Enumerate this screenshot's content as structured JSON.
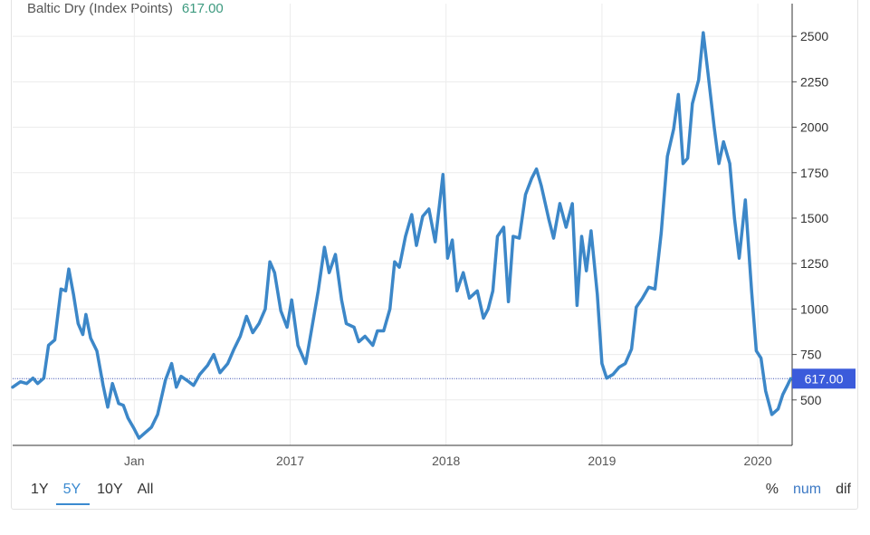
{
  "header": {
    "title": "Baltic Dry (Index Points)",
    "value": "617.00"
  },
  "colors": {
    "line": "#3c87c8",
    "price_tag": "#3b5bdb",
    "grid": "#ececec",
    "ref_line": "#3b4fb0"
  },
  "range_tabs": [
    {
      "label": "1Y",
      "active": false
    },
    {
      "label": "5Y",
      "active": true
    },
    {
      "label": "10Y",
      "active": false
    },
    {
      "label": "All",
      "active": false
    }
  ],
  "mode_tabs": [
    {
      "label": "%",
      "active": false
    },
    {
      "label": "num",
      "active": true
    },
    {
      "label": "dif",
      "active": false
    }
  ],
  "chart_data": {
    "type": "line",
    "title": "Baltic Dry (Index Points)",
    "xlabel": "",
    "ylabel": "",
    "x_tick_labels": [
      {
        "label": "Jan",
        "x": 2016.0
      },
      {
        "label": "2017",
        "x": 2017.0
      },
      {
        "label": "2018",
        "x": 2018.0
      },
      {
        "label": "2019",
        "x": 2019.0
      },
      {
        "label": "2020",
        "x": 2020.0
      }
    ],
    "y_ticks": [
      500,
      750,
      1000,
      1250,
      1500,
      1750,
      2000,
      2250,
      2500
    ],
    "xlim": [
      2015.22,
      2020.22
    ],
    "ylim": [
      250,
      2680
    ],
    "grid": true,
    "last_value": 617.0,
    "last_value_label": "617.00",
    "series": [
      {
        "name": "",
        "points": [
          [
            2015.22,
            570
          ],
          [
            2015.27,
            600
          ],
          [
            2015.31,
            590
          ],
          [
            2015.35,
            620
          ],
          [
            2015.38,
            590
          ],
          [
            2015.42,
            620
          ],
          [
            2015.45,
            800
          ],
          [
            2015.49,
            830
          ],
          [
            2015.53,
            1110
          ],
          [
            2015.56,
            1100
          ],
          [
            2015.58,
            1220
          ],
          [
            2015.61,
            1080
          ],
          [
            2015.64,
            920
          ],
          [
            2015.67,
            860
          ],
          [
            2015.69,
            970
          ],
          [
            2015.72,
            840
          ],
          [
            2015.76,
            770
          ],
          [
            2015.8,
            580
          ],
          [
            2015.83,
            460
          ],
          [
            2015.86,
            590
          ],
          [
            2015.9,
            480
          ],
          [
            2015.93,
            470
          ],
          [
            2015.96,
            400
          ],
          [
            2016.0,
            340
          ],
          [
            2016.03,
            290
          ],
          [
            2016.07,
            320
          ],
          [
            2016.11,
            350
          ],
          [
            2016.15,
            420
          ],
          [
            2016.2,
            610
          ],
          [
            2016.24,
            700
          ],
          [
            2016.27,
            570
          ],
          [
            2016.3,
            630
          ],
          [
            2016.35,
            600
          ],
          [
            2016.38,
            580
          ],
          [
            2016.42,
            640
          ],
          [
            2016.47,
            690
          ],
          [
            2016.51,
            750
          ],
          [
            2016.55,
            650
          ],
          [
            2016.6,
            700
          ],
          [
            2016.64,
            780
          ],
          [
            2016.68,
            850
          ],
          [
            2016.72,
            960
          ],
          [
            2016.76,
            870
          ],
          [
            2016.8,
            920
          ],
          [
            2016.84,
            1000
          ],
          [
            2016.87,
            1260
          ],
          [
            2016.9,
            1200
          ],
          [
            2016.94,
            990
          ],
          [
            2016.98,
            900
          ],
          [
            2017.01,
            1050
          ],
          [
            2017.05,
            800
          ],
          [
            2017.1,
            700
          ],
          [
            2017.13,
            850
          ],
          [
            2017.18,
            1100
          ],
          [
            2017.22,
            1340
          ],
          [
            2017.25,
            1200
          ],
          [
            2017.29,
            1300
          ],
          [
            2017.33,
            1050
          ],
          [
            2017.36,
            920
          ],
          [
            2017.41,
            900
          ],
          [
            2017.44,
            820
          ],
          [
            2017.48,
            850
          ],
          [
            2017.53,
            800
          ],
          [
            2017.56,
            880
          ],
          [
            2017.6,
            880
          ],
          [
            2017.64,
            1000
          ],
          [
            2017.67,
            1260
          ],
          [
            2017.7,
            1230
          ],
          [
            2017.74,
            1400
          ],
          [
            2017.78,
            1520
          ],
          [
            2017.81,
            1350
          ],
          [
            2017.85,
            1510
          ],
          [
            2017.89,
            1550
          ],
          [
            2017.93,
            1370
          ],
          [
            2017.98,
            1740
          ],
          [
            2018.01,
            1280
          ],
          [
            2018.04,
            1380
          ],
          [
            2018.07,
            1100
          ],
          [
            2018.11,
            1200
          ],
          [
            2018.15,
            1060
          ],
          [
            2018.2,
            1100
          ],
          [
            2018.24,
            950
          ],
          [
            2018.27,
            1000
          ],
          [
            2018.3,
            1100
          ],
          [
            2018.33,
            1400
          ],
          [
            2018.37,
            1450
          ],
          [
            2018.4,
            1040
          ],
          [
            2018.43,
            1400
          ],
          [
            2018.47,
            1390
          ],
          [
            2018.51,
            1630
          ],
          [
            2018.55,
            1720
          ],
          [
            2018.58,
            1770
          ],
          [
            2018.61,
            1680
          ],
          [
            2018.66,
            1490
          ],
          [
            2018.69,
            1390
          ],
          [
            2018.73,
            1580
          ],
          [
            2018.77,
            1450
          ],
          [
            2018.81,
            1580
          ],
          [
            2018.84,
            1020
          ],
          [
            2018.87,
            1400
          ],
          [
            2018.9,
            1210
          ],
          [
            2018.93,
            1430
          ],
          [
            2018.97,
            1080
          ],
          [
            2019.0,
            700
          ],
          [
            2019.03,
            620
          ],
          [
            2019.07,
            640
          ],
          [
            2019.11,
            680
          ],
          [
            2019.15,
            700
          ],
          [
            2019.19,
            780
          ],
          [
            2019.22,
            1010
          ],
          [
            2019.26,
            1060
          ],
          [
            2019.3,
            1120
          ],
          [
            2019.34,
            1110
          ],
          [
            2019.38,
            1420
          ],
          [
            2019.42,
            1840
          ],
          [
            2019.46,
            1990
          ],
          [
            2019.49,
            2180
          ],
          [
            2019.52,
            1800
          ],
          [
            2019.55,
            1830
          ],
          [
            2019.58,
            2130
          ],
          [
            2019.62,
            2260
          ],
          [
            2019.65,
            2520
          ],
          [
            2019.68,
            2300
          ],
          [
            2019.72,
            2000
          ],
          [
            2019.75,
            1800
          ],
          [
            2019.78,
            1920
          ],
          [
            2019.82,
            1800
          ],
          [
            2019.85,
            1500
          ],
          [
            2019.88,
            1280
          ],
          [
            2019.92,
            1600
          ],
          [
            2019.96,
            1100
          ],
          [
            2019.99,
            770
          ],
          [
            2020.02,
            730
          ],
          [
            2020.05,
            550
          ],
          [
            2020.09,
            420
          ],
          [
            2020.13,
            450
          ],
          [
            2020.16,
            530
          ],
          [
            2020.19,
            580
          ],
          [
            2020.21,
            617
          ]
        ]
      }
    ]
  }
}
